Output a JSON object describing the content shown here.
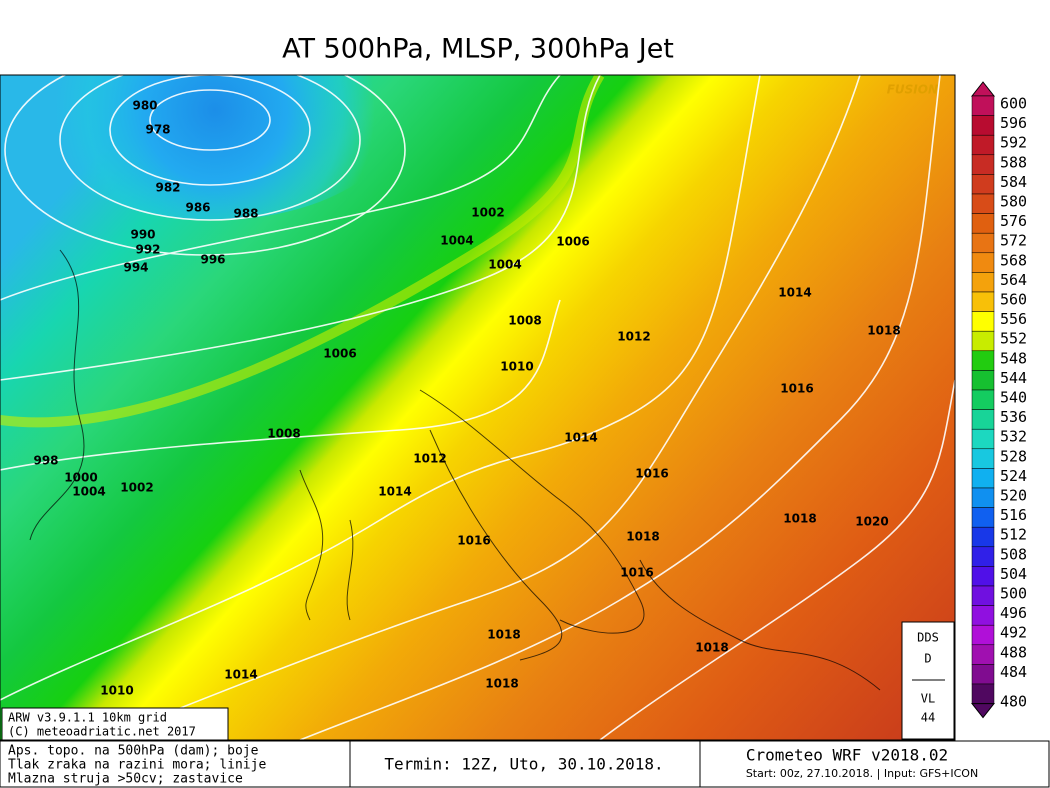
{
  "title": "AT 500hPa, MLSP, 300hPa Jet",
  "watermark": "FUSION",
  "colorbar": {
    "levels": [
      600,
      596,
      592,
      588,
      584,
      580,
      576,
      572,
      568,
      564,
      560,
      556,
      552,
      548,
      544,
      540,
      536,
      532,
      528,
      524,
      520,
      516,
      512,
      508,
      504,
      500,
      496,
      492,
      488,
      484,
      480
    ],
    "colors": [
      "#c0105a",
      "#b80c30",
      "#c01a28",
      "#c82c24",
      "#d03c1e",
      "#d84c18",
      "#e06010",
      "#e87414",
      "#f08a10",
      "#f4a20c",
      "#f8c008",
      "#ffff00",
      "#c8ec00",
      "#22cc10",
      "#16c030",
      "#14cc60",
      "#18d498",
      "#1cd8c0",
      "#18c8e0",
      "#10b0f0",
      "#1090f0",
      "#1060f0",
      "#1838e8",
      "#3020e8",
      "#5010e8",
      "#7010e0",
      "#9010e0",
      "#b010d8",
      "#a010b0",
      "#800c90",
      "#500860"
    ]
  },
  "isobar_labels": [
    980,
    978,
    982,
    986,
    988,
    990,
    992,
    994,
    996,
    1002,
    1004,
    1004,
    1006,
    1008,
    1006,
    1010,
    1012,
    1014,
    1018,
    1016,
    1014,
    1016,
    1008,
    1012,
    1014,
    998,
    1000,
    1004,
    1002,
    1016,
    1018,
    1018,
    1020,
    1016,
    1018,
    1018,
    1018,
    1014,
    1010
  ],
  "info_box": {
    "model": "ARW v3.9.1.1 10km grid",
    "copyright": "(C) meteoadriatic.net 2017"
  },
  "legend_text": [
    "Aps. topo. na 500hPa (dam); boje",
    "Tlak zraka na razini mora; linije",
    "Mlazna struja >50cv; zastavice"
  ],
  "run_time": "Termin: 12Z, Uto, 30.10.2018.",
  "model_name": "Crometeo WRF v2018.02",
  "start_info": "Start: 00z, 27.10.2018. | Input: GFS+ICON",
  "side_box": {
    "top": "DDS",
    "top2": "D",
    "bottom": "VL",
    "bottom2": "44"
  }
}
